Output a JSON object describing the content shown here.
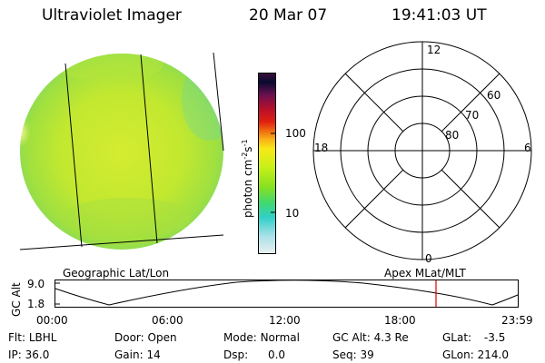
{
  "header": {
    "instrument": "Ultraviolet Imager",
    "date": "20 Mar 07",
    "time": "19:41:03 UT"
  },
  "colorbar": {
    "label_main": "photon cm",
    "label_exp1": "-2",
    "label_mid": "s",
    "label_exp2": "-1",
    "ticks": [
      "100",
      "10"
    ],
    "colors": [
      "#3a0f3a",
      "#0a0a30",
      "#6a1050",
      "#b8102a",
      "#e02010",
      "#f06a10",
      "#f8b418",
      "#f8e818",
      "#c8f018",
      "#88e020",
      "#40d870",
      "#30d0c8",
      "#a8e0e8",
      "#e8f0f0"
    ]
  },
  "polar": {
    "clock_labels": [
      "12",
      "18",
      "6",
      "0"
    ],
    "lat_labels": [
      "60",
      "70",
      "80"
    ]
  },
  "timeline": {
    "left_label": "Geographic Lat/Lon",
    "right_label": "Apex MLat/MLT",
    "axis_label": "GC Alt",
    "y_ticks": [
      "9.0",
      "1.8"
    ],
    "x_ticks": [
      "00:00",
      "06:00",
      "12:00",
      "18:00",
      "23:59"
    ],
    "marker_color": "#e00000"
  },
  "footer": {
    "row1": [
      {
        "label": "Flt:",
        "value": "LBHL"
      },
      {
        "label": "Door:",
        "value": "Open"
      },
      {
        "label": "Mode:",
        "value": "Normal"
      },
      {
        "label": "GC Alt:",
        "value": "4.3 Re"
      },
      {
        "label": "GLat:",
        "value": "-3.5"
      }
    ],
    "row2": [
      {
        "label": "IP:",
        "value": "36.0"
      },
      {
        "label": "Gain:",
        "value": "14"
      },
      {
        "label": "Dsp:",
        "value": "0.0"
      },
      {
        "label": "Seq:",
        "value": "39"
      },
      {
        "label": "GLon:",
        "value": "214.0"
      }
    ]
  }
}
